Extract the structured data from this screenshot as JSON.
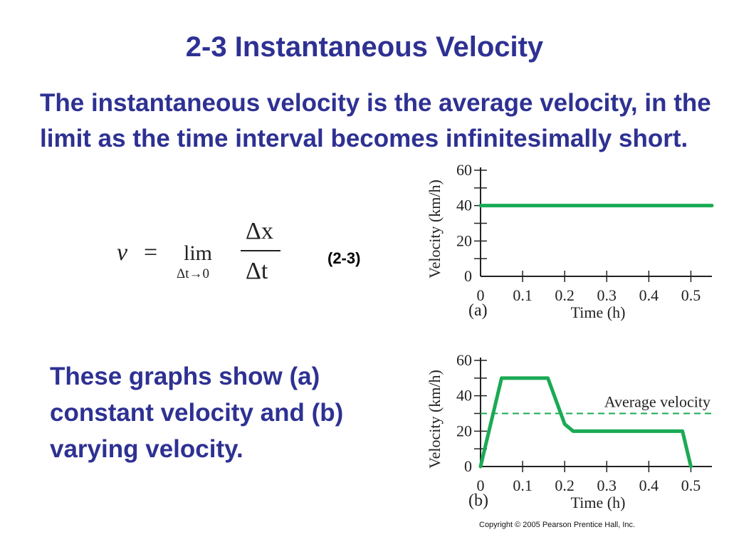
{
  "slide": {
    "title": "2-3 Instantaneous Velocity",
    "paragraph1": "The instantaneous velocity is the average velocity, in the limit as the time interval becomes infinitesimally short.",
    "paragraph2": "These graphs show (a) constant velocity and (b) varying velocity.",
    "equation": {
      "lhs": "v",
      "equals": "=",
      "lim": "lim",
      "subscript": "Δt→0",
      "numerator": "Δx",
      "denominator": "Δt",
      "number": "(2-3)"
    },
    "copyright": "Copyright © 2005 Pearson Prentice Hall, Inc."
  },
  "colors": {
    "text": "#2e3192",
    "curve": "#1aaa55",
    "axis": "#222222"
  },
  "chart_data": [
    {
      "type": "line",
      "panel_label": "(a)",
      "xlabel": "Time (h)",
      "ylabel": "Velocity (km/h)",
      "xlim": [
        0,
        0.55
      ],
      "ylim": [
        0,
        60
      ],
      "xticks": [
        "0",
        "0.1",
        "0.2",
        "0.3",
        "0.4",
        "0.5"
      ],
      "yticks": [
        "0",
        "20",
        "40",
        "60"
      ],
      "series": [
        {
          "x": [
            0,
            0.55
          ],
          "y": [
            40,
            40
          ]
        }
      ]
    },
    {
      "type": "line",
      "panel_label": "(b)",
      "xlabel": "Time (h)",
      "ylabel": "Velocity (km/h)",
      "xlim": [
        0,
        0.55
      ],
      "ylim": [
        0,
        60
      ],
      "xticks": [
        "0",
        "0.1",
        "0.2",
        "0.3",
        "0.4",
        "0.5"
      ],
      "yticks": [
        "0",
        "20",
        "40",
        "60"
      ],
      "series": [
        {
          "x": [
            0,
            0.05,
            0.16,
            0.2,
            0.22,
            0.48,
            0.5
          ],
          "y": [
            0,
            50,
            50,
            24,
            20,
            20,
            0
          ]
        }
      ],
      "reference_line": {
        "y": 30,
        "label": "Average velocity"
      }
    }
  ]
}
